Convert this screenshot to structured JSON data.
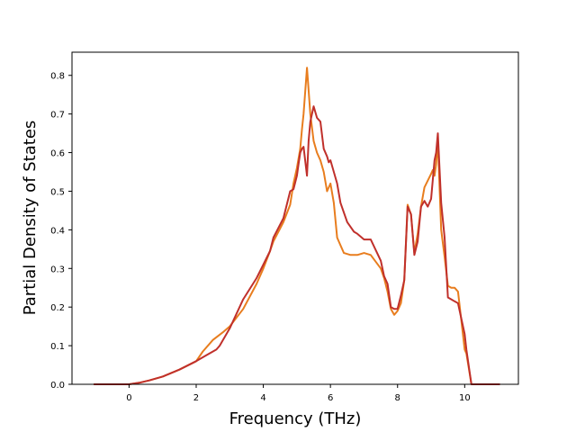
{
  "chart_data": {
    "type": "line",
    "xlabel": "Frequency (THz)",
    "ylabel": "Partial Density of States",
    "xlim": [
      -1.7,
      11.6
    ],
    "ylim": [
      0.0,
      0.86
    ],
    "xticks": [
      "0",
      "2",
      "4",
      "6",
      "8",
      "10"
    ],
    "yticks": [
      "0.0",
      "0.1",
      "0.2",
      "0.3",
      "0.4",
      "0.5",
      "0.6",
      "0.7",
      "0.8"
    ],
    "grid": false,
    "series": [
      {
        "color": "#e87d1e",
        "x": [
          -1.05,
          0.0,
          0.3,
          0.6,
          1.0,
          1.5,
          2.0,
          2.2,
          2.5,
          2.8,
          3.0,
          3.4,
          3.8,
          4.0,
          4.2,
          4.3,
          4.6,
          4.8,
          4.9,
          5.0,
          5.1,
          5.15,
          5.2,
          5.3,
          5.4,
          5.5,
          5.6,
          5.7,
          5.8,
          5.9,
          6.0,
          6.1,
          6.2,
          6.3,
          6.4,
          6.6,
          6.8,
          7.0,
          7.2,
          7.5,
          7.6,
          7.7,
          7.8,
          7.9,
          8.0,
          8.1,
          8.2,
          8.3,
          8.4,
          8.5,
          8.6,
          8.7,
          8.8,
          9.0,
          9.05,
          9.1,
          9.15,
          9.2,
          9.3,
          9.4,
          9.5,
          9.6,
          9.7,
          9.8,
          10.0,
          10.05,
          10.2,
          10.5,
          11.05
        ],
        "y": [
          0.0,
          0.0,
          0.004,
          0.01,
          0.02,
          0.038,
          0.06,
          0.085,
          0.115,
          0.135,
          0.15,
          0.195,
          0.26,
          0.3,
          0.345,
          0.37,
          0.42,
          0.465,
          0.52,
          0.56,
          0.61,
          0.66,
          0.7,
          0.82,
          0.7,
          0.63,
          0.6,
          0.58,
          0.55,
          0.5,
          0.52,
          0.47,
          0.38,
          0.36,
          0.34,
          0.335,
          0.335,
          0.34,
          0.335,
          0.3,
          0.275,
          0.24,
          0.195,
          0.18,
          0.19,
          0.21,
          0.27,
          0.465,
          0.44,
          0.34,
          0.39,
          0.46,
          0.51,
          0.545,
          0.555,
          0.54,
          0.57,
          0.63,
          0.4,
          0.33,
          0.255,
          0.25,
          0.25,
          0.24,
          0.09,
          0.08,
          0.0,
          0.0,
          0.0
        ]
      },
      {
        "color": "#c0302b",
        "x": [
          -1.05,
          0.0,
          0.3,
          0.6,
          1.0,
          1.5,
          2.0,
          2.3,
          2.6,
          2.7,
          3.0,
          3.4,
          3.8,
          4.0,
          4.2,
          4.3,
          4.6,
          4.8,
          4.9,
          5.0,
          5.05,
          5.1,
          5.15,
          5.2,
          5.3,
          5.35,
          5.4,
          5.5,
          5.6,
          5.7,
          5.8,
          5.9,
          5.95,
          6.0,
          6.2,
          6.3,
          6.5,
          6.7,
          6.8,
          7.0,
          7.2,
          7.5,
          7.6,
          7.7,
          7.8,
          7.9,
          8.0,
          8.1,
          8.2,
          8.3,
          8.4,
          8.5,
          8.6,
          8.7,
          8.8,
          8.9,
          9.0,
          9.05,
          9.1,
          9.15,
          9.2,
          9.3,
          9.4,
          9.5,
          9.6,
          9.7,
          9.8,
          10.0,
          10.05,
          10.2,
          10.5,
          11.05
        ],
        "y": [
          0.0,
          0.0,
          0.004,
          0.01,
          0.02,
          0.038,
          0.06,
          0.075,
          0.09,
          0.1,
          0.145,
          0.22,
          0.275,
          0.31,
          0.345,
          0.38,
          0.43,
          0.5,
          0.505,
          0.54,
          0.57,
          0.6,
          0.61,
          0.615,
          0.54,
          0.63,
          0.68,
          0.72,
          0.69,
          0.68,
          0.61,
          0.59,
          0.575,
          0.58,
          0.52,
          0.47,
          0.42,
          0.395,
          0.39,
          0.375,
          0.375,
          0.32,
          0.28,
          0.26,
          0.2,
          0.195,
          0.195,
          0.23,
          0.27,
          0.46,
          0.44,
          0.335,
          0.37,
          0.46,
          0.475,
          0.46,
          0.48,
          0.53,
          0.58,
          0.6,
          0.65,
          0.47,
          0.38,
          0.225,
          0.22,
          0.215,
          0.21,
          0.13,
          0.09,
          0.0,
          0.0,
          0.0
        ]
      }
    ]
  }
}
